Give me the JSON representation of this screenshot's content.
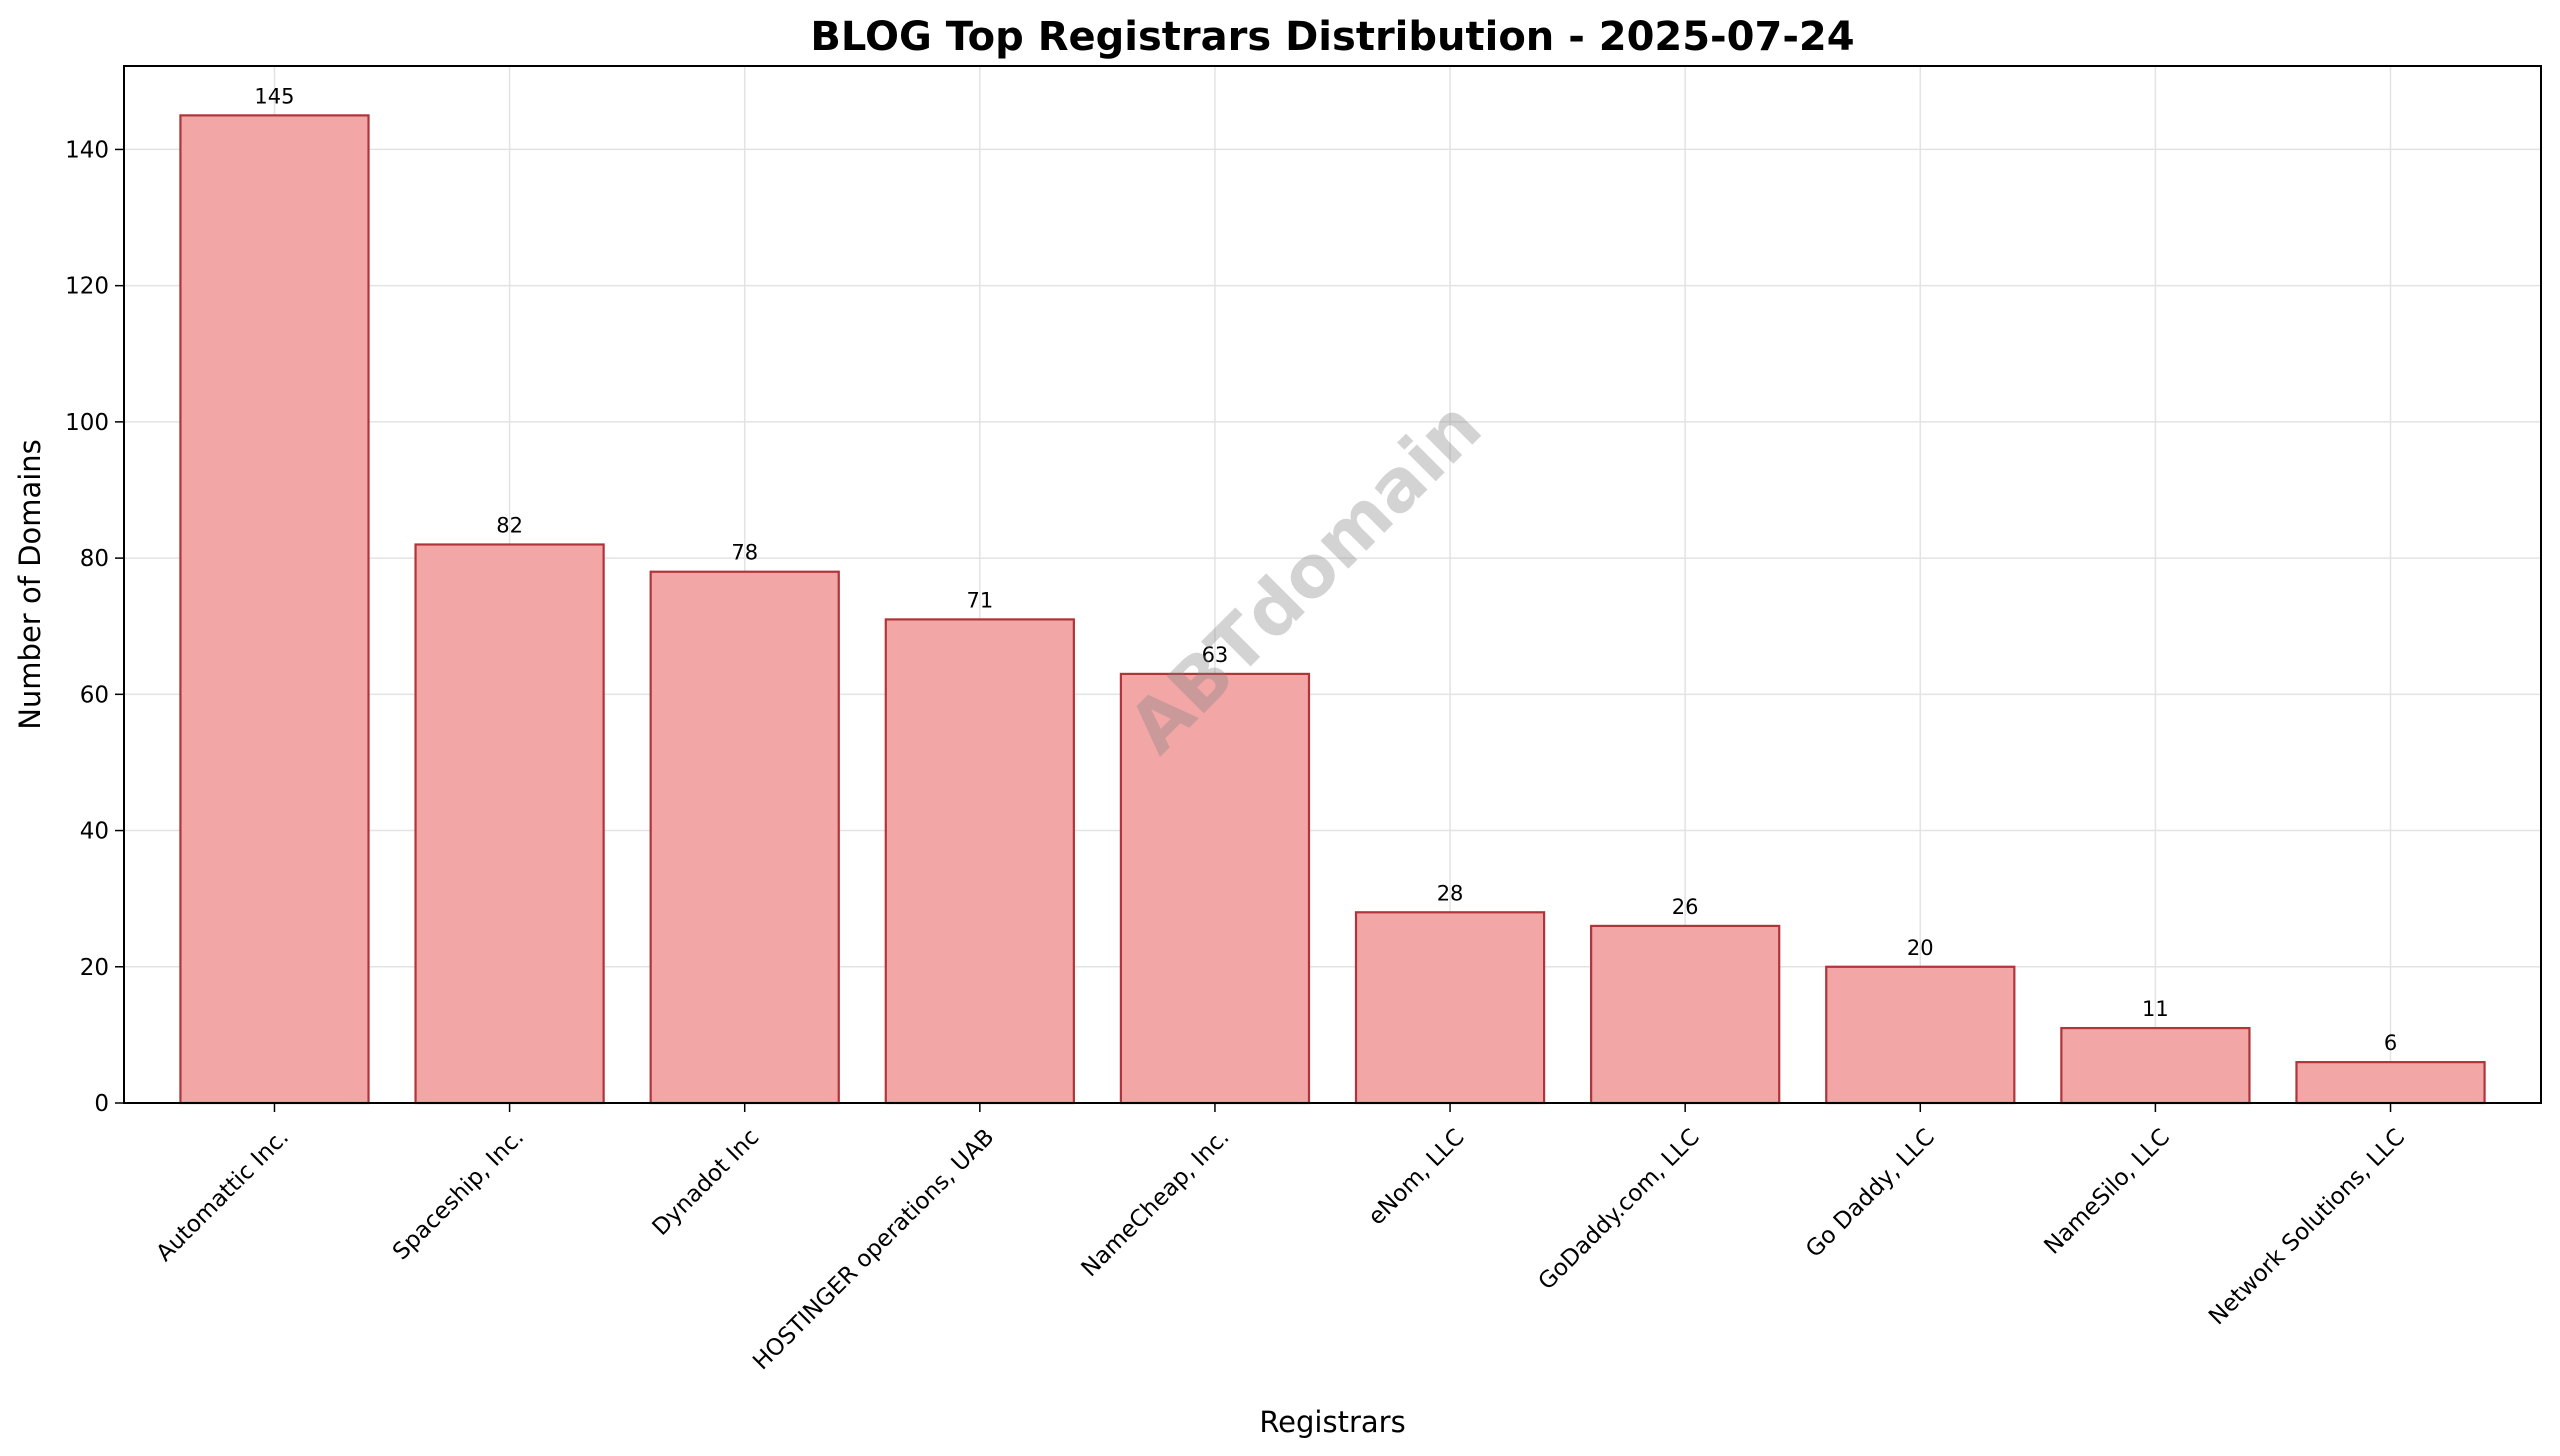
{
  "chart_data": {
    "type": "bar",
    "title": "BLOG Top Registrars Distribution - 2025-07-24",
    "xlabel": "Registrars",
    "ylabel": "Number of Domains",
    "categories": [
      "Automattic Inc.",
      "Spaceship, Inc.",
      "Dynadot Inc",
      "HOSTINGER operations, UAB",
      "NameCheap, Inc.",
      "eNom, LLC",
      "GoDaddy.com, LLC",
      "Go Daddy, LLC",
      "NameSilo, LLC",
      "Network Solutions, LLC"
    ],
    "values": [
      145,
      82,
      78,
      71,
      63,
      28,
      26,
      20,
      11,
      6
    ],
    "data_labels": [
      "145",
      "82",
      "78",
      "71",
      "63",
      "28",
      "26",
      "20",
      "11",
      "6"
    ],
    "ylim": [
      0,
      152.25
    ],
    "yticks": [
      0,
      20,
      40,
      60,
      80,
      100,
      120,
      140
    ],
    "grid": true,
    "bar_fill": "#f2a6a6",
    "bar_edge": "#b0343a",
    "watermark": "ABTdomain"
  }
}
